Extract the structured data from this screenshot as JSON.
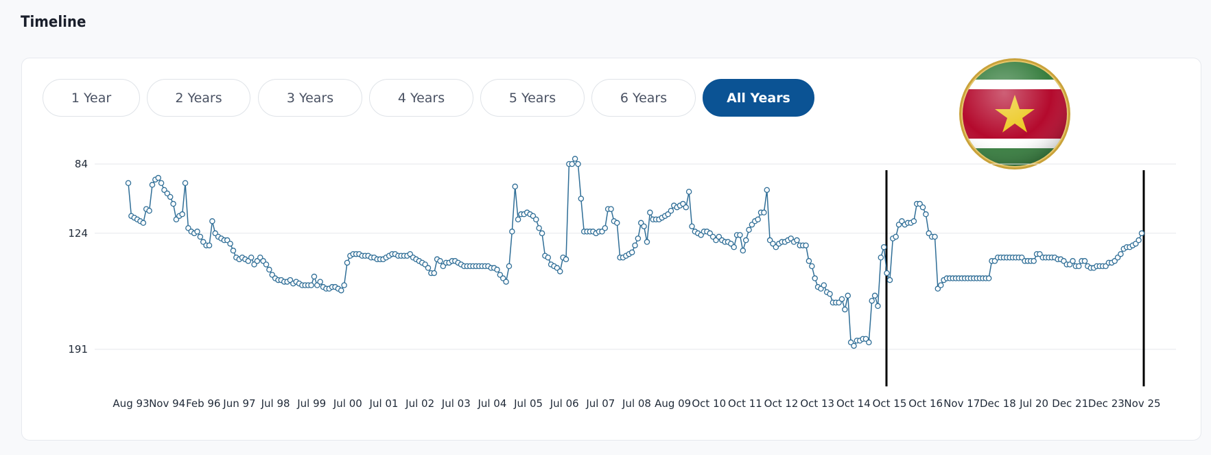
{
  "page": {
    "title": "Timeline"
  },
  "tabs": [
    {
      "label": "1 Year",
      "active": false
    },
    {
      "label": "2 Years",
      "active": false
    },
    {
      "label": "3 Years",
      "active": false
    },
    {
      "label": "4 Years",
      "active": false
    },
    {
      "label": "5 Years",
      "active": false
    },
    {
      "label": "6 Years",
      "active": false
    },
    {
      "label": "All Years",
      "active": true
    }
  ],
  "flag": {
    "icon": "suriname-flag-icon",
    "colors": {
      "green": "#377e3f",
      "white": "#ffffff",
      "red": "#b40a2d",
      "star": "#ecc81d",
      "rim": "#c9a23a"
    }
  },
  "colors": {
    "accent": "#0b5394",
    "line": "#2e6d96",
    "marker_fill": "#ffffff",
    "grid": "#e5e7eb",
    "marker_line": "#000000"
  },
  "chart_data": {
    "type": "line",
    "title": "",
    "xlabel": "",
    "ylabel": "",
    "y_inverted": true,
    "ylim": [
      84,
      191
    ],
    "y_ticks": [
      84,
      124,
      191
    ],
    "grid": true,
    "x_tick_labels": [
      "Aug 93",
      "Nov 94",
      "Feb 96",
      "Jun 97",
      "Jul 98",
      "Jul 99",
      "Jul 00",
      "Jul 01",
      "Jul 02",
      "Jul 03",
      "Jul 04",
      "Jul 05",
      "Jul 06",
      "Jul 07",
      "Jul 08",
      "Aug 09",
      "Oct 10",
      "Oct 11",
      "Oct 12",
      "Oct 13",
      "Oct 14",
      "Oct 15",
      "Oct 16",
      "Nov 17",
      "Dec 18",
      "Jul 20",
      "Dec 21",
      "Dec 23",
      "Nov 25"
    ],
    "vertical_markers": [
      "Oct 15",
      "Nov 25"
    ],
    "values": [
      95,
      114,
      115,
      116,
      117,
      118,
      110,
      111,
      96,
      93,
      92,
      95,
      99,
      101,
      103,
      107,
      116,
      114,
      113,
      95,
      121,
      123,
      124,
      123,
      126,
      129,
      131,
      131,
      117,
      124,
      126,
      127,
      128,
      128,
      130,
      134,
      138,
      139,
      138,
      139,
      140,
      138,
      142,
      140,
      138,
      140,
      142,
      145,
      148,
      150,
      151,
      151,
      152,
      152,
      151,
      153,
      152,
      153,
      154,
      154,
      154,
      154,
      149,
      154,
      152,
      155,
      156,
      156,
      155,
      155,
      156,
      157,
      154,
      141,
      137,
      136,
      136,
      136,
      137,
      137,
      137,
      138,
      138,
      139,
      139,
      139,
      138,
      137,
      136,
      136,
      137,
      137,
      137,
      137,
      136,
      138,
      139,
      140,
      141,
      142,
      144,
      147,
      147,
      139,
      140,
      143,
      141,
      141,
      140,
      140,
      141,
      142,
      143,
      143,
      143,
      143,
      143,
      143,
      143,
      143,
      143,
      144,
      144,
      145,
      148,
      150,
      152,
      143,
      123,
      97,
      116,
      113,
      113,
      112,
      113,
      114,
      116,
      121,
      124,
      137,
      138,
      142,
      143,
      144,
      146,
      138,
      139,
      84,
      84,
      81,
      84,
      104,
      123,
      123,
      123,
      123,
      124,
      123,
      123,
      121,
      110,
      110,
      117,
      118,
      138,
      138,
      137,
      136,
      135,
      131,
      127,
      118,
      120,
      129,
      112,
      116,
      116,
      116,
      115,
      114,
      113,
      111,
      108,
      109,
      108,
      107,
      109,
      100,
      120,
      123,
      124,
      125,
      123,
      123,
      124,
      126,
      128,
      126,
      128,
      129,
      129,
      130,
      132,
      125,
      125,
      134,
      128,
      122,
      119,
      117,
      116,
      112,
      112,
      99,
      128,
      130,
      132,
      130,
      129,
      129,
      128,
      127,
      129,
      128,
      131,
      131,
      131,
      140,
      143,
      150,
      155,
      156,
      154,
      158,
      159,
      164,
      164,
      164,
      162,
      168,
      160,
      187,
      189,
      186,
      186,
      185,
      185,
      187,
      163,
      160,
      166,
      138,
      132,
      147,
      151,
      127,
      126,
      119,
      117,
      119,
      118,
      118,
      117,
      107,
      107,
      109,
      113,
      124,
      126,
      126,
      156,
      154,
      151,
      150,
      150,
      150,
      150,
      150,
      150,
      150,
      150,
      150,
      150,
      150,
      150,
      150,
      150,
      150,
      140,
      140,
      138,
      138,
      138,
      138,
      138,
      138,
      138,
      138,
      138,
      140,
      140,
      140,
      140,
      136,
      136,
      138,
      138,
      138,
      138,
      138,
      139,
      139,
      140,
      142,
      142,
      140,
      143,
      143,
      140,
      140,
      143,
      144,
      144,
      143,
      143,
      143,
      143,
      141,
      141,
      140,
      138,
      136,
      133,
      132,
      132,
      131,
      130,
      128,
      124
    ]
  }
}
